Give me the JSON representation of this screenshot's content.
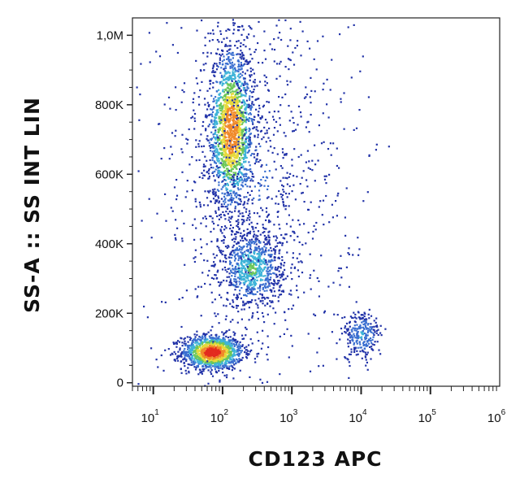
{
  "chart_data": {
    "type": "scatter",
    "plot_style": "flow-cytometry density dot plot",
    "xlabel": "CD123 APC",
    "ylabel": "SS-A :: SS INT LIN",
    "x_scale": "log",
    "y_scale": "linear",
    "xlim": [
      5,
      1000000
    ],
    "ylim": [
      -10000,
      1050000
    ],
    "x_ticks": [
      {
        "value": 10,
        "label": "10",
        "exp": "1"
      },
      {
        "value": 100,
        "label": "10",
        "exp": "2"
      },
      {
        "value": 1000,
        "label": "10",
        "exp": "3"
      },
      {
        "value": 10000,
        "label": "10",
        "exp": "4"
      },
      {
        "value": 100000,
        "label": "10",
        "exp": "5"
      },
      {
        "value": 1000000,
        "label": "10",
        "exp": "6"
      }
    ],
    "y_ticks": [
      {
        "value": 0,
        "label": "0"
      },
      {
        "value": 200000,
        "label": "200K"
      },
      {
        "value": 400000,
        "label": "400K"
      },
      {
        "value": 600000,
        "label": "600K"
      },
      {
        "value": 800000,
        "label": "800K"
      },
      {
        "value": 1000000,
        "label": "1,0M"
      }
    ],
    "density_colors": [
      "#2233a8",
      "#3a6fd0",
      "#3fb4d8",
      "#6cc75a",
      "#e6d93a",
      "#f08a2a",
      "#e32a1f"
    ],
    "populations": [
      {
        "x_center": 70,
        "y_center": 90000,
        "x_spread_log": 0.22,
        "y_spread": 25000,
        "rotation_deg": 0,
        "weight": 0.25,
        "peak_density": 1.0
      },
      {
        "x_center": 130,
        "y_center": 730000,
        "x_spread_log": 0.17,
        "y_spread": 120000,
        "rotation_deg": 0,
        "weight": 0.35,
        "peak_density": 0.85
      },
      {
        "x_center": 260,
        "y_center": 330000,
        "x_spread_log": 0.22,
        "y_spread": 55000,
        "rotation_deg": 0,
        "weight": 0.16,
        "peak_density": 0.45
      },
      {
        "x_center": 10000,
        "y_center": 140000,
        "x_spread_log": 0.14,
        "y_spread": 35000,
        "rotation_deg": 0,
        "weight": 0.05,
        "peak_density": 0.3
      },
      {
        "x_center": 300,
        "y_center": 600000,
        "x_spread_log": 0.7,
        "y_spread": 300000,
        "rotation_deg": 0,
        "weight": 0.19,
        "peak_density": 0.15
      }
    ]
  }
}
